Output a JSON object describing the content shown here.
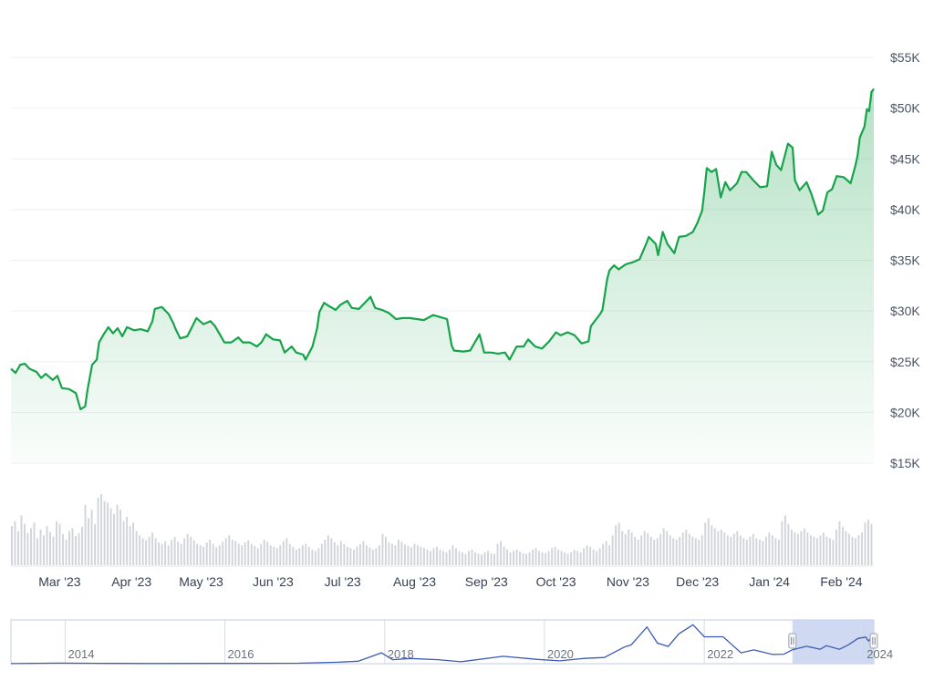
{
  "chart_data": {
    "type": "area",
    "title": "",
    "xlabel": "",
    "ylabel": "",
    "ylim": [
      15000,
      55000
    ],
    "y_ticks": [
      "$15K",
      "$20K",
      "$25K",
      "$30K",
      "$35K",
      "$40K",
      "$45K",
      "$50K",
      "$55K"
    ],
    "y_tick_values": [
      15000,
      20000,
      25000,
      30000,
      35000,
      40000,
      45000,
      50000,
      55000
    ],
    "x_range": [
      "2023-02-08",
      "2024-02-15"
    ],
    "x_ticks": [
      {
        "date": "2023-03-01",
        "label": "Mar '23"
      },
      {
        "date": "2023-04-01",
        "label": "Apr '23"
      },
      {
        "date": "2023-05-01",
        "label": "May '23"
      },
      {
        "date": "2023-06-01",
        "label": "Jun '23"
      },
      {
        "date": "2023-07-01",
        "label": "Jul '23"
      },
      {
        "date": "2023-08-01",
        "label": "Aug '23"
      },
      {
        "date": "2023-09-01",
        "label": "Sep '23"
      },
      {
        "date": "2023-10-01",
        "label": "Oct '23"
      },
      {
        "date": "2023-11-01",
        "label": "Nov '23"
      },
      {
        "date": "2023-12-01",
        "label": "Dec '23"
      },
      {
        "date": "2024-01-01",
        "label": "Jan '24"
      },
      {
        "date": "2024-02-01",
        "label": "Feb '24"
      }
    ],
    "grid": true,
    "line_color": "#16a34a",
    "fill_color": "#16a34a",
    "series": [
      {
        "points": [
          [
            "2023-02-08",
            24300
          ],
          [
            "2023-02-10",
            23900
          ],
          [
            "2023-02-12",
            24700
          ],
          [
            "2023-02-14",
            24800
          ],
          [
            "2023-02-16",
            24300
          ],
          [
            "2023-02-19",
            24000
          ],
          [
            "2023-02-21",
            23400
          ],
          [
            "2023-02-23",
            23800
          ],
          [
            "2023-02-26",
            23200
          ],
          [
            "2023-02-28",
            23600
          ],
          [
            "2023-03-02",
            22400
          ],
          [
            "2023-03-05",
            22300
          ],
          [
            "2023-03-08",
            21900
          ],
          [
            "2023-03-10",
            20300
          ],
          [
            "2023-03-12",
            20600
          ],
          [
            "2023-03-13",
            22200
          ],
          [
            "2023-03-15",
            24700
          ],
          [
            "2023-03-17",
            25200
          ],
          [
            "2023-03-18",
            26900
          ],
          [
            "2023-03-20",
            27700
          ],
          [
            "2023-03-22",
            28400
          ],
          [
            "2023-03-24",
            27800
          ],
          [
            "2023-03-26",
            28300
          ],
          [
            "2023-03-28",
            27500
          ],
          [
            "2023-03-30",
            28400
          ],
          [
            "2023-04-02",
            28100
          ],
          [
            "2023-04-05",
            28200
          ],
          [
            "2023-04-08",
            28000
          ],
          [
            "2023-04-10",
            29000
          ],
          [
            "2023-04-11",
            30200
          ],
          [
            "2023-04-14",
            30400
          ],
          [
            "2023-04-17",
            29700
          ],
          [
            "2023-04-19",
            28800
          ],
          [
            "2023-04-20",
            28200
          ],
          [
            "2023-04-22",
            27300
          ],
          [
            "2023-04-25",
            27500
          ],
          [
            "2023-04-27",
            28400
          ],
          [
            "2023-04-29",
            29300
          ],
          [
            "2023-05-02",
            28700
          ],
          [
            "2023-05-05",
            29000
          ],
          [
            "2023-05-07",
            28500
          ],
          [
            "2023-05-09",
            27700
          ],
          [
            "2023-05-11",
            26900
          ],
          [
            "2023-05-14",
            26900
          ],
          [
            "2023-05-17",
            27400
          ],
          [
            "2023-05-19",
            26900
          ],
          [
            "2023-05-22",
            26900
          ],
          [
            "2023-05-25",
            26500
          ],
          [
            "2023-05-27",
            26900
          ],
          [
            "2023-05-29",
            27700
          ],
          [
            "2023-06-01",
            27200
          ],
          [
            "2023-06-04",
            27100
          ],
          [
            "2023-06-06",
            25900
          ],
          [
            "2023-06-09",
            26500
          ],
          [
            "2023-06-11",
            25900
          ],
          [
            "2023-06-14",
            25700
          ],
          [
            "2023-06-15",
            25200
          ],
          [
            "2023-06-18",
            26500
          ],
          [
            "2023-06-20",
            28300
          ],
          [
            "2023-06-21",
            29900
          ],
          [
            "2023-06-23",
            30800
          ],
          [
            "2023-06-25",
            30500
          ],
          [
            "2023-06-28",
            30100
          ],
          [
            "2023-06-30",
            30600
          ],
          [
            "2023-07-03",
            31000
          ],
          [
            "2023-07-05",
            30300
          ],
          [
            "2023-07-08",
            30200
          ],
          [
            "2023-07-13",
            31400
          ],
          [
            "2023-07-15",
            30300
          ],
          [
            "2023-07-18",
            30100
          ],
          [
            "2023-07-21",
            29800
          ],
          [
            "2023-07-24",
            29200
          ],
          [
            "2023-07-27",
            29300
          ],
          [
            "2023-07-30",
            29300
          ],
          [
            "2023-08-02",
            29200
          ],
          [
            "2023-08-05",
            29100
          ],
          [
            "2023-08-09",
            29600
          ],
          [
            "2023-08-12",
            29400
          ],
          [
            "2023-08-15",
            29200
          ],
          [
            "2023-08-17",
            26600
          ],
          [
            "2023-08-18",
            26100
          ],
          [
            "2023-08-22",
            26000
          ],
          [
            "2023-08-25",
            26100
          ],
          [
            "2023-08-29",
            27700
          ],
          [
            "2023-08-31",
            25900
          ],
          [
            "2023-09-03",
            25900
          ],
          [
            "2023-09-06",
            25800
          ],
          [
            "2023-09-09",
            25900
          ],
          [
            "2023-09-11",
            25200
          ],
          [
            "2023-09-14",
            26500
          ],
          [
            "2023-09-17",
            26500
          ],
          [
            "2023-09-19",
            27200
          ],
          [
            "2023-09-22",
            26500
          ],
          [
            "2023-09-25",
            26300
          ],
          [
            "2023-09-28",
            27000
          ],
          [
            "2023-10-01",
            27900
          ],
          [
            "2023-10-03",
            27600
          ],
          [
            "2023-10-06",
            27900
          ],
          [
            "2023-10-09",
            27600
          ],
          [
            "2023-10-12",
            26800
          ],
          [
            "2023-10-15",
            27000
          ],
          [
            "2023-10-16",
            28500
          ],
          [
            "2023-10-20",
            29700
          ],
          [
            "2023-10-21",
            30100
          ],
          [
            "2023-10-23",
            33100
          ],
          [
            "2023-10-24",
            34000
          ],
          [
            "2023-10-26",
            34500
          ],
          [
            "2023-10-28",
            34100
          ],
          [
            "2023-10-31",
            34600
          ],
          [
            "2023-11-03",
            34800
          ],
          [
            "2023-11-06",
            35100
          ],
          [
            "2023-11-09",
            36700
          ],
          [
            "2023-11-10",
            37300
          ],
          [
            "2023-11-13",
            36600
          ],
          [
            "2023-11-14",
            35500
          ],
          [
            "2023-11-16",
            37800
          ],
          [
            "2023-11-18",
            36600
          ],
          [
            "2023-11-21",
            35700
          ],
          [
            "2023-11-23",
            37300
          ],
          [
            "2023-11-26",
            37400
          ],
          [
            "2023-11-29",
            37800
          ],
          [
            "2023-12-01",
            38700
          ],
          [
            "2023-12-03",
            39900
          ],
          [
            "2023-12-04",
            41900
          ],
          [
            "2023-12-05",
            44100
          ],
          [
            "2023-12-07",
            43700
          ],
          [
            "2023-12-09",
            44000
          ],
          [
            "2023-12-11",
            41200
          ],
          [
            "2023-12-13",
            42700
          ],
          [
            "2023-12-15",
            41900
          ],
          [
            "2023-12-18",
            42600
          ],
          [
            "2023-12-20",
            43700
          ],
          [
            "2023-12-22",
            43700
          ],
          [
            "2023-12-25",
            42900
          ],
          [
            "2023-12-28",
            42200
          ],
          [
            "2023-12-31",
            42300
          ],
          [
            "2024-01-02",
            45700
          ],
          [
            "2024-01-04",
            44400
          ],
          [
            "2024-01-06",
            43900
          ],
          [
            "2024-01-09",
            46500
          ],
          [
            "2024-01-11",
            46100
          ],
          [
            "2024-01-12",
            42900
          ],
          [
            "2024-01-14",
            41900
          ],
          [
            "2024-01-17",
            42700
          ],
          [
            "2024-01-19",
            41600
          ],
          [
            "2024-01-22",
            39500
          ],
          [
            "2024-01-24",
            39900
          ],
          [
            "2024-01-26",
            41700
          ],
          [
            "2024-01-28",
            42000
          ],
          [
            "2024-01-30",
            43300
          ],
          [
            "2024-02-02",
            43200
          ],
          [
            "2024-02-05",
            42600
          ],
          [
            "2024-02-07",
            44300
          ],
          [
            "2024-02-08",
            45300
          ],
          [
            "2024-02-09",
            47100
          ],
          [
            "2024-02-11",
            48200
          ],
          [
            "2024-02-12",
            49900
          ],
          [
            "2024-02-13",
            49700
          ],
          [
            "2024-02-14",
            51600
          ],
          [
            "2024-02-15",
            51900
          ]
        ]
      }
    ],
    "volume_bars": {
      "color": "#d1d5db",
      "start": "2023-02-08",
      "relative_values": [
        0.55,
        0.62,
        0.48,
        0.7,
        0.58,
        0.45,
        0.52,
        0.6,
        0.38,
        0.5,
        0.42,
        0.55,
        0.47,
        0.4,
        0.62,
        0.58,
        0.44,
        0.36,
        0.48,
        0.52,
        0.41,
        0.45,
        0.54,
        0.85,
        0.66,
        0.78,
        0.58,
        0.95,
        1.0,
        0.9,
        0.88,
        0.8,
        0.72,
        0.85,
        0.78,
        0.62,
        0.68,
        0.55,
        0.6,
        0.48,
        0.42,
        0.38,
        0.35,
        0.4,
        0.46,
        0.38,
        0.32,
        0.3,
        0.34,
        0.28,
        0.36,
        0.4,
        0.33,
        0.3,
        0.38,
        0.44,
        0.4,
        0.35,
        0.3,
        0.28,
        0.26,
        0.32,
        0.36,
        0.3,
        0.25,
        0.28,
        0.33,
        0.38,
        0.42,
        0.36,
        0.34,
        0.3,
        0.28,
        0.32,
        0.35,
        0.3,
        0.27,
        0.24,
        0.3,
        0.36,
        0.33,
        0.28,
        0.26,
        0.24,
        0.28,
        0.34,
        0.38,
        0.3,
        0.26,
        0.22,
        0.24,
        0.28,
        0.3,
        0.26,
        0.22,
        0.2,
        0.24,
        0.3,
        0.36,
        0.42,
        0.38,
        0.32,
        0.28,
        0.34,
        0.3,
        0.26,
        0.24,
        0.22,
        0.26,
        0.3,
        0.34,
        0.28,
        0.25,
        0.22,
        0.24,
        0.28,
        0.44,
        0.4,
        0.32,
        0.3,
        0.28,
        0.36,
        0.33,
        0.29,
        0.27,
        0.25,
        0.3,
        0.28,
        0.26,
        0.24,
        0.22,
        0.2,
        0.24,
        0.26,
        0.22,
        0.2,
        0.18,
        0.22,
        0.28,
        0.24,
        0.2,
        0.18,
        0.16,
        0.2,
        0.22,
        0.18,
        0.16,
        0.15,
        0.18,
        0.2,
        0.17,
        0.16,
        0.3,
        0.34,
        0.26,
        0.22,
        0.18,
        0.2,
        0.22,
        0.19,
        0.17,
        0.16,
        0.18,
        0.22,
        0.24,
        0.2,
        0.18,
        0.17,
        0.2,
        0.24,
        0.26,
        0.22,
        0.2,
        0.18,
        0.16,
        0.18,
        0.22,
        0.2,
        0.18,
        0.24,
        0.28,
        0.26,
        0.22,
        0.2,
        0.24,
        0.3,
        0.34,
        0.28,
        0.42,
        0.56,
        0.6,
        0.48,
        0.44,
        0.5,
        0.46,
        0.4,
        0.36,
        0.42,
        0.48,
        0.45,
        0.4,
        0.36,
        0.38,
        0.44,
        0.52,
        0.48,
        0.42,
        0.38,
        0.36,
        0.4,
        0.46,
        0.5,
        0.44,
        0.4,
        0.38,
        0.36,
        0.42,
        0.6,
        0.66,
        0.56,
        0.52,
        0.48,
        0.5,
        0.46,
        0.42,
        0.4,
        0.44,
        0.48,
        0.42,
        0.38,
        0.36,
        0.4,
        0.44,
        0.38,
        0.36,
        0.34,
        0.4,
        0.46,
        0.42,
        0.38,
        0.36,
        0.62,
        0.7,
        0.58,
        0.5,
        0.46,
        0.44,
        0.48,
        0.52,
        0.46,
        0.42,
        0.4,
        0.38,
        0.42,
        0.46,
        0.4,
        0.38,
        0.36,
        0.5,
        0.62,
        0.54,
        0.48,
        0.44,
        0.4,
        0.38,
        0.42,
        0.46,
        0.6,
        0.64,
        0.58
      ]
    },
    "navigator": {
      "x_range": [
        "2013-04-28",
        "2024-02-15"
      ],
      "labels": [
        {
          "date": "2014-01-01",
          "label": "2014"
        },
        {
          "date": "2016-01-01",
          "label": "2016"
        },
        {
          "date": "2018-01-01",
          "label": "2018"
        },
        {
          "date": "2020-01-01",
          "label": "2020"
        },
        {
          "date": "2022-01-01",
          "label": "2022"
        },
        {
          "date": "2024-01-01",
          "label": "2024"
        }
      ],
      "line_color": "#3b5bb5",
      "selection_color": "#c7d2f0",
      "selection_range": [
        "2023-02-08",
        "2024-02-15"
      ],
      "points": [
        [
          "2013-04-28",
          135
        ],
        [
          "2013-12-01",
          1000
        ],
        [
          "2014-06-01",
          640
        ],
        [
          "2015-01-01",
          310
        ],
        [
          "2016-01-01",
          430
        ],
        [
          "2016-12-01",
          750
        ],
        [
          "2017-06-01",
          2500
        ],
        [
          "2017-09-01",
          4300
        ],
        [
          "2017-12-17",
          19000
        ],
        [
          "2018-02-06",
          7000
        ],
        [
          "2018-05-01",
          9000
        ],
        [
          "2018-09-01",
          7000
        ],
        [
          "2018-12-15",
          3300
        ],
        [
          "2019-06-26",
          12900
        ],
        [
          "2019-12-01",
          7500
        ],
        [
          "2020-03-12",
          4900
        ],
        [
          "2020-07-01",
          9200
        ],
        [
          "2020-10-01",
          10800
        ],
        [
          "2020-12-31",
          29000
        ],
        [
          "2021-02-01",
          33000
        ],
        [
          "2021-04-14",
          64000
        ],
        [
          "2021-06-01",
          36000
        ],
        [
          "2021-07-20",
          30000
        ],
        [
          "2021-09-07",
          52000
        ],
        [
          "2021-11-10",
          68000
        ],
        [
          "2022-01-01",
          47000
        ],
        [
          "2022-03-28",
          47000
        ],
        [
          "2022-06-18",
          19000
        ],
        [
          "2022-08-15",
          24000
        ],
        [
          "2022-11-09",
          16000
        ],
        [
          "2022-12-31",
          16500
        ],
        [
          "2023-02-08",
          24300
        ],
        [
          "2023-04-14",
          30400
        ],
        [
          "2023-06-15",
          25200
        ],
        [
          "2023-07-13",
          31400
        ],
        [
          "2023-09-11",
          25200
        ],
        [
          "2023-10-23",
          33100
        ],
        [
          "2023-12-05",
          44100
        ],
        [
          "2024-01-09",
          46500
        ],
        [
          "2024-01-22",
          39500
        ],
        [
          "2024-02-15",
          51900
        ]
      ],
      "ylim": [
        0,
        70000
      ]
    }
  }
}
